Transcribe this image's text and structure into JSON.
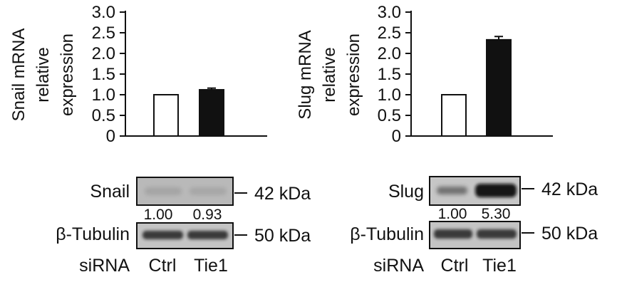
{
  "chart_data": [
    {
      "type": "bar",
      "categories": [
        "Ctrl",
        "Tie1"
      ],
      "values": [
        1.0,
        1.12
      ],
      "errors": [
        0,
        0.04
      ],
      "ylabel": [
        "Snail mRNA",
        "relative",
        "expression"
      ],
      "ylim": [
        0,
        3.0
      ],
      "yticks": [
        "0",
        "0.5",
        "1.0",
        "1.5",
        "2.0",
        "2.5",
        "3.0"
      ],
      "bar_fill": [
        "#ffffff",
        "#111111"
      ]
    },
    {
      "type": "bar",
      "categories": [
        "Ctrl",
        "Tie1"
      ],
      "values": [
        1.0,
        2.33
      ],
      "errors": [
        0,
        0.08
      ],
      "ylabel": [
        "Slug mRNA",
        "relative",
        "expression"
      ],
      "ylim": [
        0,
        3.0
      ],
      "yticks": [
        "0",
        "0.5",
        "1.0",
        "1.5",
        "2.0",
        "2.5",
        "3.0"
      ],
      "bar_fill": [
        "#ffffff",
        "#111111"
      ]
    }
  ],
  "blots": [
    {
      "target_label": "Snail",
      "target_kda": "42 kDa",
      "quant": [
        "1.00",
        "0.93"
      ],
      "control_label": "β-Tubulin",
      "control_kda": "50 kDa",
      "sirna_label": "siRNA",
      "lanes": [
        "Ctrl",
        "Tie1"
      ]
    },
    {
      "target_label": "Slug",
      "target_kda": "42 kDa",
      "quant": [
        "1.00",
        "5.30"
      ],
      "control_label": "β-Tubulin",
      "control_kda": "50 kDa",
      "sirna_label": "siRNA",
      "lanes": [
        "Ctrl",
        "Tie1"
      ]
    }
  ]
}
